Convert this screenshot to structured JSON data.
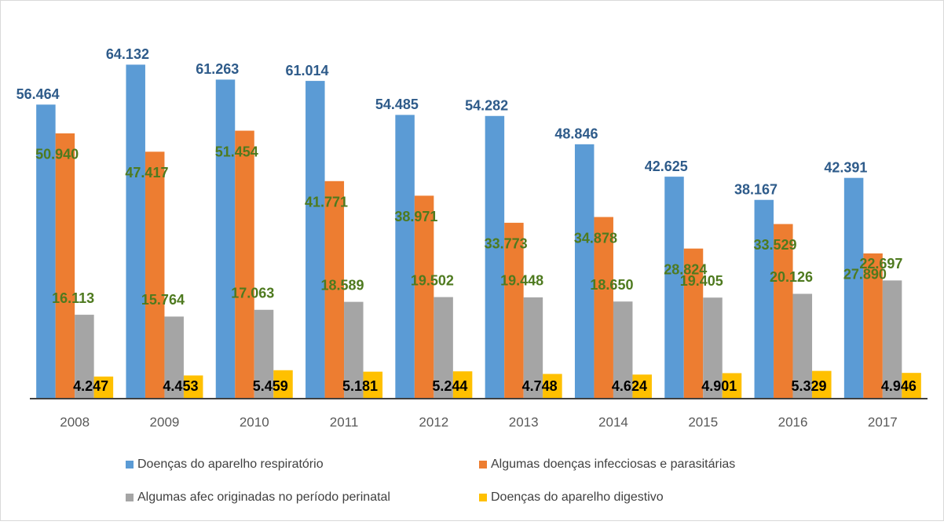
{
  "chart_data": {
    "type": "bar",
    "categories": [
      "2008",
      "2009",
      "2010",
      "2011",
      "2012",
      "2013",
      "2014",
      "2015",
      "2016",
      "2017"
    ],
    "ylim": [
      0,
      66000
    ],
    "series": [
      {
        "name": "Doenças do aparelho respiratório",
        "color": "#5b9bd5",
        "label_color": "#2e5b8a",
        "values": [
          56464,
          64132,
          61263,
          61014,
          54485,
          54282,
          48846,
          42625,
          38167,
          42391
        ],
        "value_labels": [
          "56.464",
          "64.132",
          "61.263",
          "61.014",
          "54.485",
          "54.282",
          "48.846",
          "42.625",
          "38.167",
          "42.391"
        ]
      },
      {
        "name": "Algumas doenças infecciosas e parasitárias",
        "color": "#ed7d31",
        "label_color": "#4e7a1f",
        "values": [
          50940,
          47417,
          51454,
          41771,
          38971,
          33773,
          34878,
          28824,
          33529,
          27890
        ],
        "value_labels": [
          "50.940",
          "47.417",
          "51.454",
          "41.771",
          "38.971",
          "33.773",
          "34.878",
          "28.824",
          "33.529",
          "27.890"
        ]
      },
      {
        "name": "Algumas afec originadas no período perinatal",
        "color": "#a5a5a5",
        "label_color": "#4e7a1f",
        "values": [
          16113,
          15764,
          17063,
          18589,
          19502,
          19448,
          18650,
          19405,
          20126,
          22697
        ],
        "value_labels": [
          "16.113",
          "15.764",
          "17.063",
          "18.589",
          "19.502",
          "19.448",
          "18.650",
          "19.405",
          "20.126",
          "22.697"
        ]
      },
      {
        "name": "Doenças do aparelho digestivo",
        "color": "#ffc000",
        "label_color": "#000000",
        "values": [
          4247,
          4453,
          5459,
          5181,
          5244,
          4748,
          4624,
          4901,
          5329,
          4946
        ],
        "value_labels": [
          "4.247",
          "4.453",
          "5.459",
          "5.181",
          "5.244",
          "4.748",
          "4.624",
          "4.901",
          "5.329",
          "4.946"
        ]
      }
    ]
  }
}
